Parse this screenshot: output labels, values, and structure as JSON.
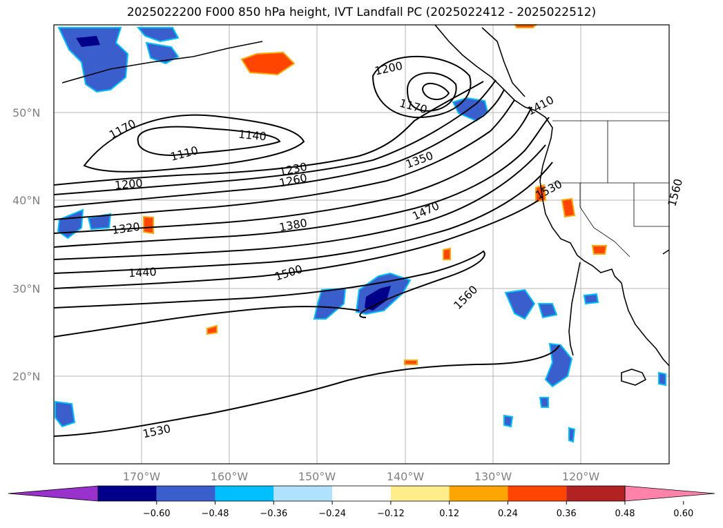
{
  "title": "2025022200 F000 850 hPa height, IVT Landfall PC (2025022412 - 2025022512)",
  "map": {
    "lon_range": [
      -180,
      -110
    ],
    "lat_range": [
      10,
      60
    ],
    "lat_ticks": [
      "20°N",
      "30°N",
      "40°N",
      "50°N"
    ],
    "lon_ticks": [
      "170°W",
      "160°W",
      "150°W",
      "140°W",
      "130°W",
      "120°W"
    ],
    "grid": true
  },
  "height_contours": {
    "units": "m",
    "labels": [
      "1110",
      "1140",
      "1170",
      "1170",
      "1200",
      "1200",
      "1230",
      "1260",
      "1320",
      "1350",
      "1380",
      "1410",
      "1440",
      "1470",
      "1500",
      "1530",
      "1530",
      "1560",
      "1560"
    ]
  },
  "colorbar": {
    "ticks": [
      "−0.60",
      "−0.48",
      "−0.36",
      "−0.24",
      "−0.12",
      "0.12",
      "0.24",
      "0.36",
      "0.48",
      "0.60"
    ],
    "colors": [
      "#9932CC",
      "#00008B",
      "#3A5FCD",
      "#00BFFF",
      "#B0E2FF",
      "#FFFFFF",
      "#FFEC8B",
      "#FFA500",
      "#FF4500",
      "#B22222",
      "#FF82AB"
    ],
    "extend": "both"
  }
}
